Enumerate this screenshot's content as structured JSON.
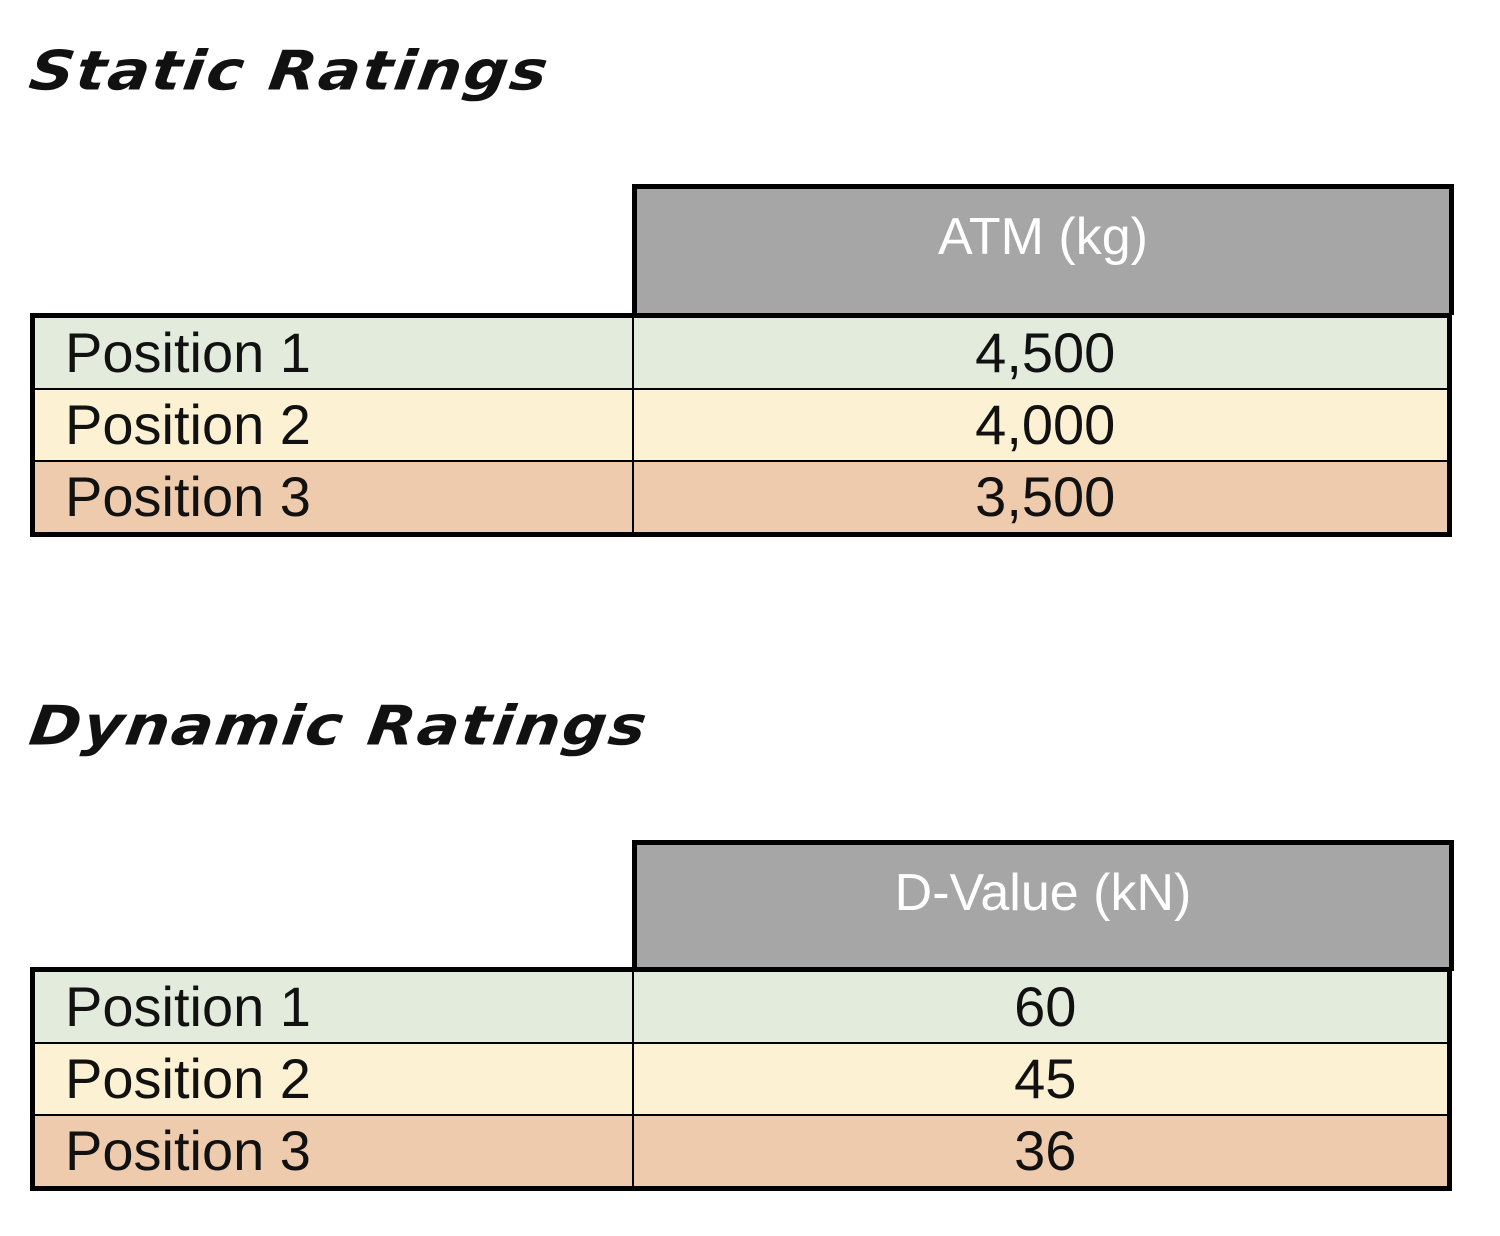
{
  "colors": {
    "header_bg": "#a6a6a6",
    "row_1": "#e3ecdc",
    "row_2": "#fcf1d2",
    "row_3": "#efcbae",
    "border": "#000000"
  },
  "static": {
    "title": "Static Ratings",
    "column_header": "ATM (kg)",
    "rows": [
      {
        "label": "Position 1",
        "value": "4,500"
      },
      {
        "label": "Position 2",
        "value": "4,000"
      },
      {
        "label": "Position 3",
        "value": "3,500"
      }
    ]
  },
  "dynamic": {
    "title": "Dynamic Ratings",
    "column_header": "D-Value (kN)",
    "rows": [
      {
        "label": "Position 1",
        "value": "60"
      },
      {
        "label": "Position 2",
        "value": "45"
      },
      {
        "label": "Position 3",
        "value": "36"
      }
    ]
  }
}
